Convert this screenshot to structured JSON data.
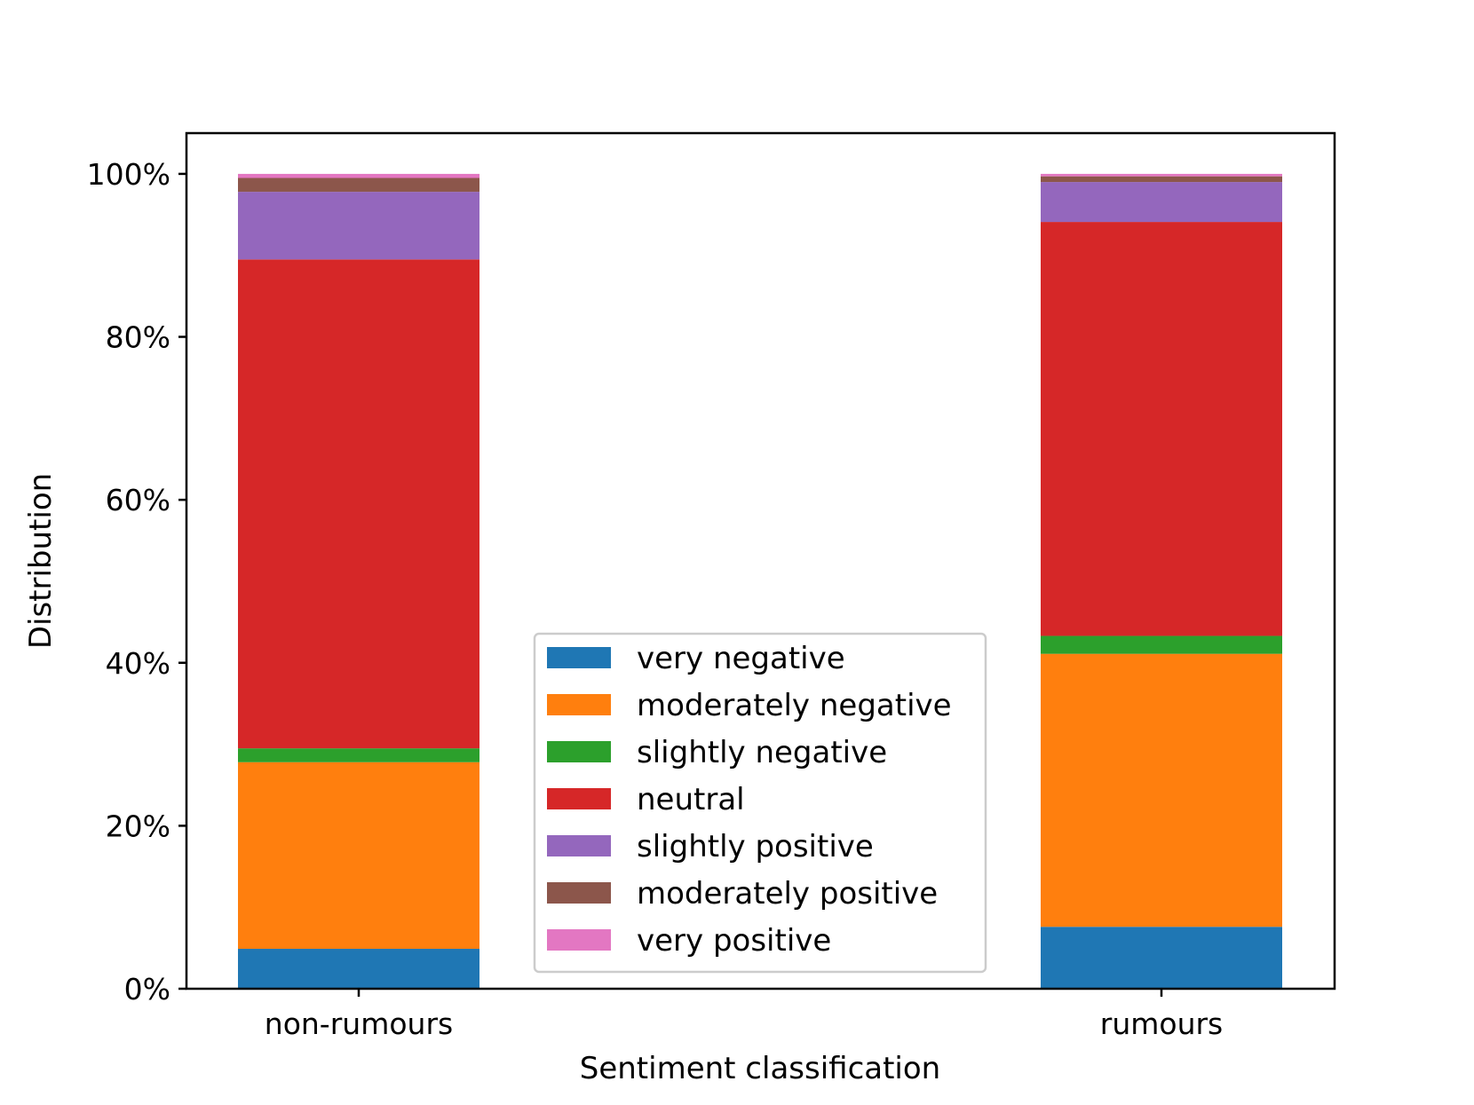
{
  "chart_data": {
    "type": "bar",
    "stacked": true,
    "categories": [
      "non-rumours",
      "rumours"
    ],
    "xlabel": "Sentiment classification",
    "ylabel": "Distribution",
    "ylim": [
      0,
      105
    ],
    "yticks": [
      "0%",
      "20%",
      "40%",
      "60%",
      "80%",
      "100%"
    ],
    "ytick_values": [
      0,
      20,
      40,
      60,
      80,
      100
    ],
    "legend_position": "bottom-center",
    "series": [
      {
        "name": "very negative",
        "color": "#1f77b4",
        "values": [
          4.9,
          7.6
        ]
      },
      {
        "name": "moderately negative",
        "color": "#ff7f0e",
        "values": [
          22.9,
          33.5
        ]
      },
      {
        "name": "slightly negative",
        "color": "#2ca02c",
        "values": [
          1.7,
          2.2
        ]
      },
      {
        "name": "neutral",
        "color": "#d62728",
        "values": [
          60.0,
          50.8
        ]
      },
      {
        "name": "slightly positive",
        "color": "#9467bd",
        "values": [
          8.3,
          4.9
        ]
      },
      {
        "name": "moderately positive",
        "color": "#8c564b",
        "values": [
          1.7,
          0.7
        ]
      },
      {
        "name": "very positive",
        "color": "#e377c2",
        "values": [
          0.5,
          0.3
        ]
      }
    ]
  }
}
